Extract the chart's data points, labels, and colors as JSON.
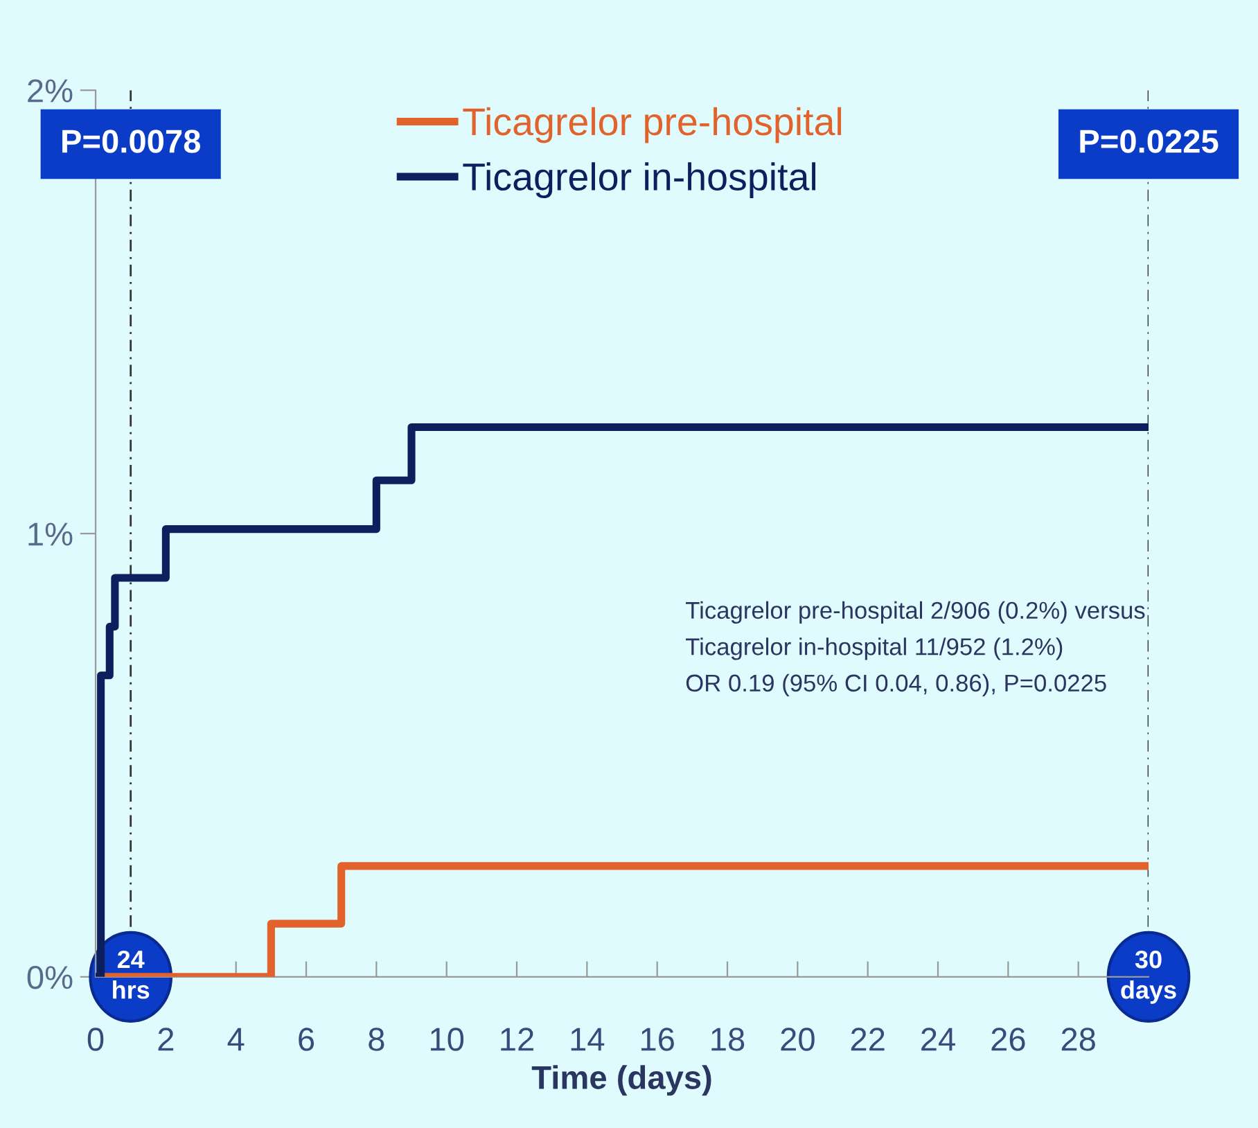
{
  "chart_data": {
    "type": "step",
    "xlabel": "Time (days)",
    "xlim": [
      0,
      30
    ],
    "xticks": [
      0,
      2,
      4,
      6,
      8,
      10,
      12,
      14,
      16,
      18,
      20,
      22,
      24,
      26,
      28
    ],
    "ylim": [
      0,
      2
    ],
    "yticks": [
      {
        "value": 0,
        "label": "0%"
      },
      {
        "value": 1,
        "label": "1%"
      },
      {
        "value": 2,
        "label": "2%"
      }
    ],
    "series": [
      {
        "name": "Ticagrelor pre-hospital",
        "color": "#e2622b",
        "x": [
          0,
          5,
          7,
          30
        ],
        "values": [
          0,
          0.12,
          0.25,
          0.25
        ]
      },
      {
        "name": "Ticagrelor in-hospital",
        "color": "#0d1f5c",
        "x": [
          0,
          0.15,
          0.4,
          0.55,
          2,
          8,
          9,
          30
        ],
        "values": [
          0,
          0.68,
          0.79,
          0.9,
          1.01,
          1.12,
          1.24,
          1.24
        ]
      }
    ],
    "ref_lines": [
      {
        "axis": "x",
        "value": 1,
        "line_style": "dashed"
      },
      {
        "axis": "x",
        "value": 30,
        "line_style": "dashed"
      }
    ],
    "annotations": [
      "24\nhrs",
      "30\ndays",
      "P=0.0078",
      "P=0.0225",
      "Ticagrelor pre-hospital 2/906 (0.2%) versus\nTicagrelor in-hospital 11/952 (1.2%)\nOR 0.19 (95% CI 0.04, 0.86), P=0.0225"
    ],
    "legend": "top",
    "grid": false,
    "line_style": "solid"
  }
}
